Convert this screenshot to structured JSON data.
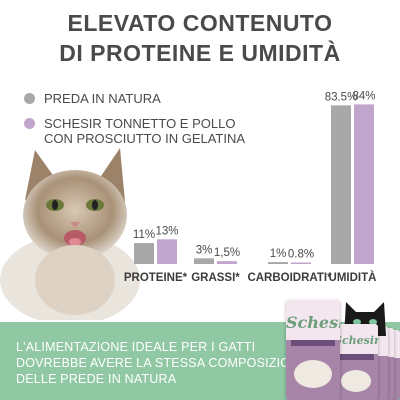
{
  "title": {
    "line1": "ELEVATO CONTENUTO",
    "line2": "DI PROTEINE E UMIDITÀ"
  },
  "legend": [
    {
      "lines": [
        "PREDA IN NATURA"
      ],
      "color": "#a8a8a8"
    },
    {
      "lines": [
        "SCHESIR TONNETTO E POLLO",
        "CON PROSCIUTTO IN GELATINA"
      ],
      "color": "#c0a6cc"
    }
  ],
  "colors": {
    "grey": "#a8a8a8",
    "purple": "#c0a6cc",
    "banner": "#8fc8a3",
    "text": "#4a4a4a"
  },
  "chart_data": {
    "type": "bar",
    "categories": [
      "PROTEINE*",
      "GRASSI*",
      "CARBOIDRATI*",
      "UMIDITÀ"
    ],
    "series": [
      {
        "name": "PREDA IN NATURA",
        "values": [
          11,
          3,
          1,
          83.5
        ],
        "labels": [
          "11%",
          "3%",
          "1%",
          "83.5%"
        ]
      },
      {
        "name": "SCHESIR TONNETTO E POLLO CON PROSCIUTTO IN GELATINA",
        "values": [
          13,
          1.5,
          0.8,
          84
        ],
        "labels": [
          "13%",
          "1,5%",
          "0.8%",
          "84%"
        ]
      }
    ],
    "ylim": [
      0,
      100
    ],
    "grid": false
  },
  "banner": {
    "lines": [
      "L'ALIMENTAZIONE IDEALE PER I GATTI",
      "DOVREBBE AVERE LA STESSA COMPOSIZIONE",
      "DELLE PREDE IN NATURA"
    ]
  },
  "product": {
    "brand": "Schesir"
  }
}
